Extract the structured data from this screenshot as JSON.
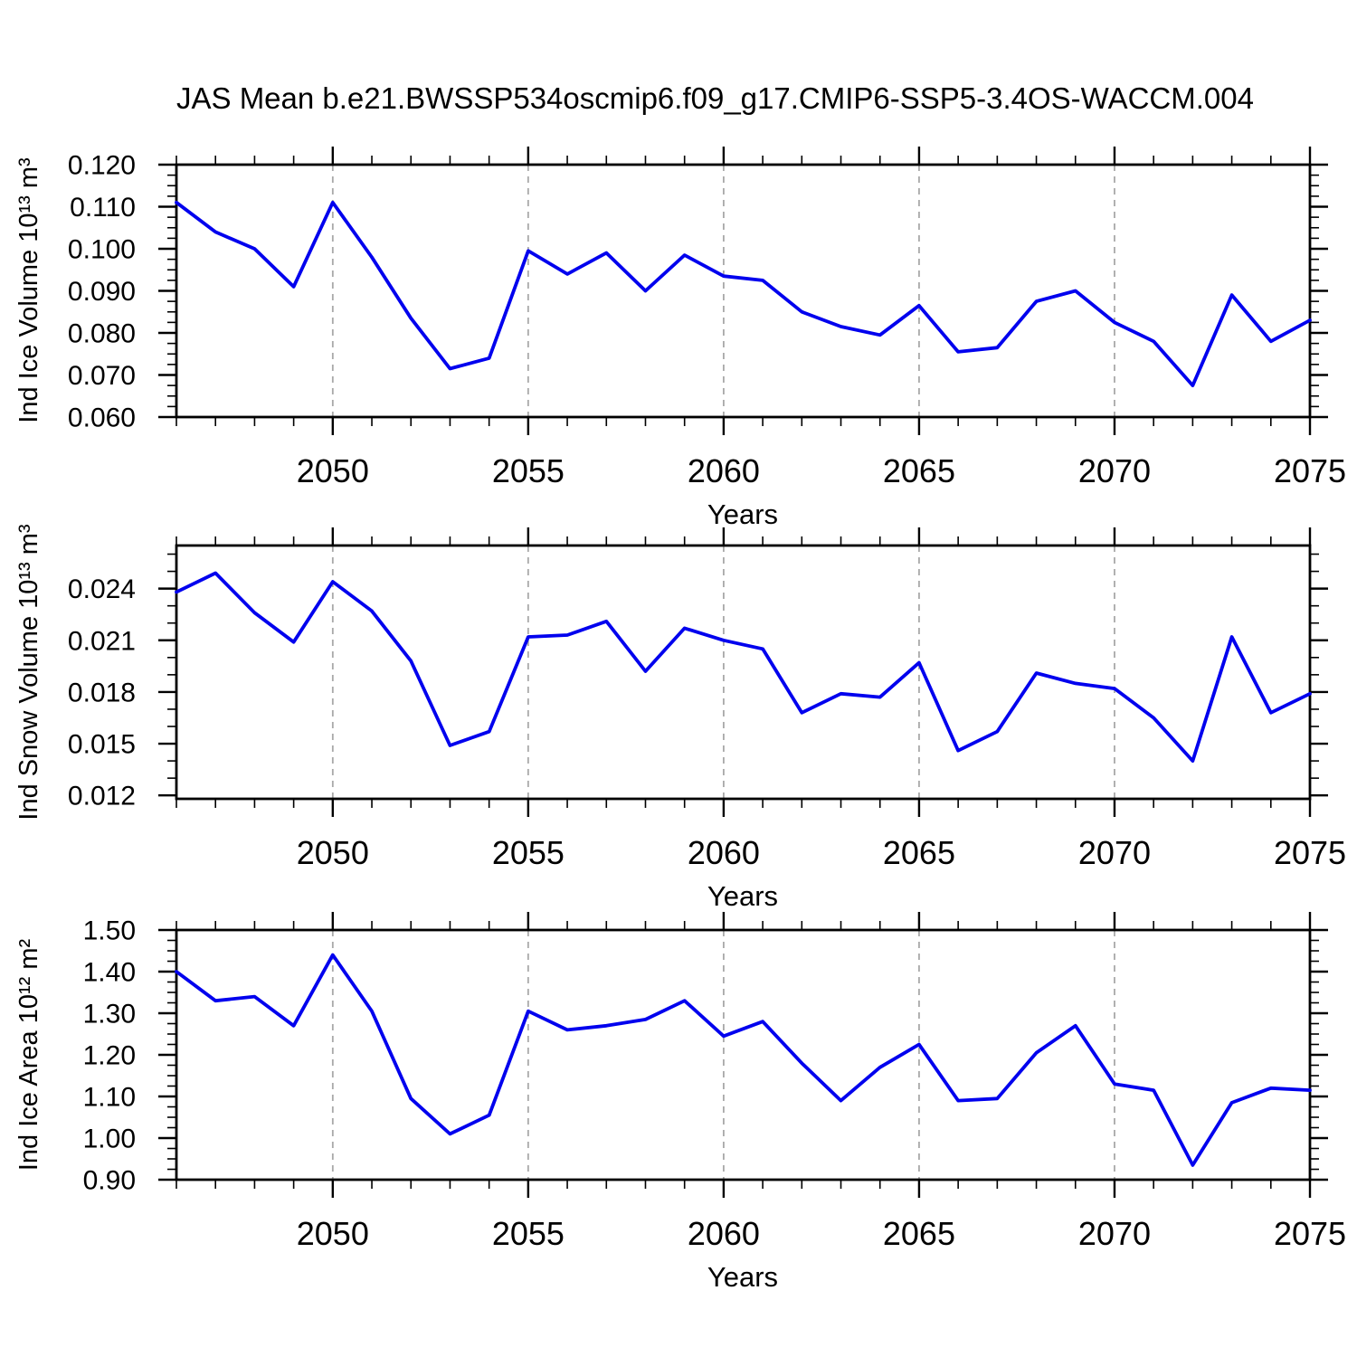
{
  "title": "JAS Mean b.e21.BWSSP534oscmip6.f09_g17.CMIP6-SSP5-3.4OS-WACCM.004",
  "colors": {
    "line": "#0000ee",
    "axis": "#000000",
    "gridline": "#a9a9a9",
    "text": "#000000",
    "background": "#ffffff"
  },
  "x_axis": {
    "label": "Years",
    "start": 2046,
    "end": 2075,
    "major_ticks": [
      2050,
      2055,
      2060,
      2065,
      2070,
      2075
    ],
    "gridline_years": [
      2050,
      2055,
      2060,
      2065,
      2070
    ]
  },
  "chart_data": [
    {
      "type": "line",
      "name": "ind-ice-volume",
      "ylabel": "Ind Ice Volume 10¹³ m³",
      "xlabel": "Years",
      "ylim": [
        0.06,
        0.12
      ],
      "yticks": [
        0.06,
        0.07,
        0.08,
        0.09,
        0.1,
        0.11,
        0.12
      ],
      "ytick_labels": [
        "0.060",
        "0.070",
        "0.080",
        "0.090",
        "0.100",
        "0.110",
        "0.120"
      ],
      "y_minor_step": 0.0025,
      "grid": "x-dashed",
      "legend": "none",
      "x": [
        2046,
        2047,
        2048,
        2049,
        2050,
        2051,
        2052,
        2053,
        2054,
        2055,
        2056,
        2057,
        2058,
        2059,
        2060,
        2061,
        2062,
        2063,
        2064,
        2065,
        2066,
        2067,
        2068,
        2069,
        2070,
        2071,
        2072,
        2073,
        2074,
        2075
      ],
      "values": [
        0.111,
        0.104,
        0.1,
        0.091,
        0.111,
        0.098,
        0.0835,
        0.0715,
        0.074,
        0.0995,
        0.094,
        0.099,
        0.09,
        0.0985,
        0.0935,
        0.0925,
        0.085,
        0.0815,
        0.0795,
        0.0865,
        0.0755,
        0.0765,
        0.0875,
        0.09,
        0.0825,
        0.078,
        0.0675,
        0.089,
        0.078,
        0.083
      ]
    },
    {
      "type": "line",
      "name": "ind-snow-volume",
      "ylabel": "Ind Snow Volume 10¹³ m³",
      "xlabel": "Years",
      "ylim": [
        0.0118,
        0.0265
      ],
      "yticks": [
        0.012,
        0.015,
        0.018,
        0.021,
        0.024
      ],
      "ytick_labels": [
        "0.012",
        "0.015",
        "0.018",
        "0.021",
        "0.024"
      ],
      "y_minor_step": 0.001,
      "grid": "x-dashed",
      "legend": "none",
      "x": [
        2046,
        2047,
        2048,
        2049,
        2050,
        2051,
        2052,
        2053,
        2054,
        2055,
        2056,
        2057,
        2058,
        2059,
        2060,
        2061,
        2062,
        2063,
        2064,
        2065,
        2066,
        2067,
        2068,
        2069,
        2070,
        2071,
        2072,
        2073,
        2074,
        2075
      ],
      "values": [
        0.0238,
        0.0249,
        0.0226,
        0.0209,
        0.0244,
        0.0227,
        0.0198,
        0.0149,
        0.0157,
        0.0212,
        0.0213,
        0.0221,
        0.0192,
        0.0217,
        0.021,
        0.0205,
        0.0168,
        0.0179,
        0.0177,
        0.0197,
        0.0146,
        0.0157,
        0.0191,
        0.0185,
        0.0182,
        0.0165,
        0.014,
        0.0212,
        0.0168,
        0.0179
      ]
    },
    {
      "type": "line",
      "name": "ind-ice-area",
      "ylabel": "Ind Ice Area 10¹² m²",
      "xlabel": "Years",
      "ylim": [
        0.9,
        1.5
      ],
      "yticks": [
        0.9,
        1.0,
        1.1,
        1.2,
        1.3,
        1.4,
        1.5
      ],
      "ytick_labels": [
        "0.90",
        "1.00",
        "1.10",
        "1.20",
        "1.30",
        "1.40",
        "1.50"
      ],
      "y_minor_step": 0.025,
      "grid": "x-dashed",
      "legend": "none",
      "x": [
        2046,
        2047,
        2048,
        2049,
        2050,
        2051,
        2052,
        2053,
        2054,
        2055,
        2056,
        2057,
        2058,
        2059,
        2060,
        2061,
        2062,
        2063,
        2064,
        2065,
        2066,
        2067,
        2068,
        2069,
        2070,
        2071,
        2072,
        2073,
        2074,
        2075
      ],
      "values": [
        1.4,
        1.33,
        1.34,
        1.27,
        1.44,
        1.305,
        1.095,
        1.01,
        1.055,
        1.305,
        1.26,
        1.27,
        1.285,
        1.33,
        1.245,
        1.28,
        1.18,
        1.09,
        1.17,
        1.225,
        1.09,
        1.095,
        1.205,
        1.27,
        1.13,
        1.115,
        0.935,
        1.085,
        1.12,
        1.115
      ]
    }
  ]
}
